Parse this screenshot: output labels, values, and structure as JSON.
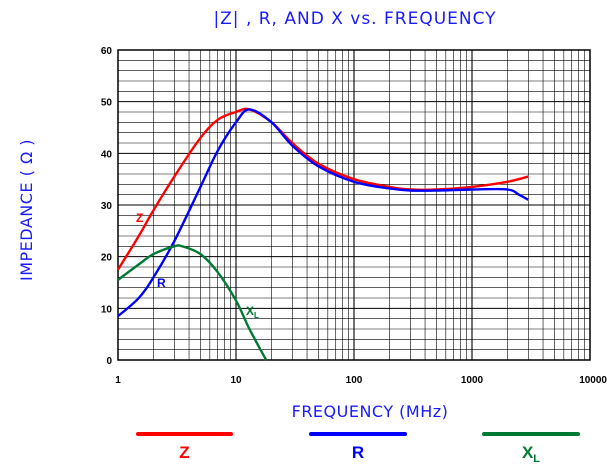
{
  "chart_data": {
    "type": "line",
    "title": "|Z| , R, AND X vs. FREQUENCY",
    "xlabel": "FREQUENCY (MHz)",
    "ylabel": "IMPEDANCE ( Ω )",
    "x_scale": "log",
    "xlim": [
      1,
      10000
    ],
    "ylim": [
      0,
      60
    ],
    "x_ticks": [
      "1",
      "10",
      "100",
      "1000",
      "10000"
    ],
    "y_ticks": [
      "0",
      "10",
      "20",
      "30",
      "40",
      "50",
      "60"
    ],
    "grid": true,
    "legend_position": "bottom",
    "series": [
      {
        "name": "Z",
        "color": "#ff0000",
        "points": [
          [
            1,
            17.5
          ],
          [
            1.5,
            24
          ],
          [
            2,
            29
          ],
          [
            3,
            35.5
          ],
          [
            5,
            43
          ],
          [
            7,
            46.5
          ],
          [
            10,
            48
          ],
          [
            13,
            48.5
          ],
          [
            20,
            46
          ],
          [
            30,
            42
          ],
          [
            50,
            38
          ],
          [
            100,
            35
          ],
          [
            200,
            33.5
          ],
          [
            300,
            33
          ],
          [
            500,
            33
          ],
          [
            1000,
            33.5
          ],
          [
            2000,
            34.5
          ],
          [
            3000,
            35.5
          ]
        ]
      },
      {
        "name": "R",
        "color": "#0000ff",
        "points": [
          [
            1,
            8.5
          ],
          [
            1.5,
            12
          ],
          [
            2,
            16
          ],
          [
            3,
            23
          ],
          [
            5,
            33.5
          ],
          [
            7,
            40.5
          ],
          [
            10,
            46
          ],
          [
            13,
            48.5
          ],
          [
            20,
            46
          ],
          [
            30,
            41.5
          ],
          [
            50,
            37.5
          ],
          [
            100,
            34.5
          ],
          [
            200,
            33.2
          ],
          [
            300,
            32.8
          ],
          [
            500,
            32.8
          ],
          [
            1000,
            33
          ],
          [
            2000,
            33
          ],
          [
            2500,
            32
          ],
          [
            3000,
            31
          ]
        ]
      },
      {
        "name": "X",
        "label_sub": "L",
        "color": "#007a33",
        "points": [
          [
            1,
            15.5
          ],
          [
            1.5,
            18.5
          ],
          [
            2,
            20.5
          ],
          [
            3,
            22
          ],
          [
            3.5,
            22
          ],
          [
            5,
            20.5
          ],
          [
            7,
            17
          ],
          [
            10,
            11.5
          ],
          [
            13,
            6
          ],
          [
            18,
            0
          ]
        ]
      }
    ],
    "curve_labels": [
      {
        "text": "Z",
        "series": 0
      },
      {
        "text": "R",
        "series": 1
      },
      {
        "text": "X",
        "sub": "L",
        "series": 2
      }
    ],
    "legend": [
      {
        "text": "Z",
        "color": "#ff0000"
      },
      {
        "text": "R",
        "color": "#0000ff"
      },
      {
        "text": "X",
        "sub": "L",
        "color": "#007a33"
      }
    ]
  }
}
